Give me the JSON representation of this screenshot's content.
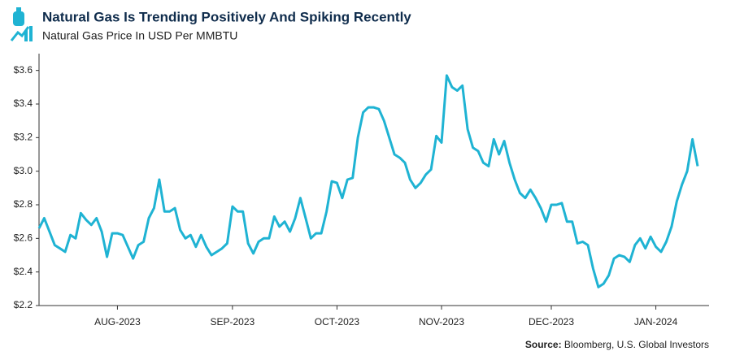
{
  "chart_data": {
    "type": "line",
    "title": "Natural Gas Is Trending Positively And Spiking Recently",
    "subtitle": "Natural Gas Price In USD Per MMBTU",
    "source_label": "Source:",
    "source": "Bloomberg, U.S. Global Investors",
    "categories": [
      null,
      null,
      null,
      null,
      null,
      null,
      null,
      null,
      null,
      null,
      null,
      null,
      null,
      null,
      null,
      "AUG-2023",
      null,
      null,
      null,
      null,
      null,
      null,
      null,
      null,
      null,
      null,
      null,
      null,
      null,
      null,
      null,
      null,
      null,
      null,
      null,
      null,
      null,
      "SEP-2023",
      null,
      null,
      null,
      null,
      null,
      null,
      null,
      null,
      null,
      null,
      null,
      null,
      null,
      null,
      null,
      null,
      null,
      null,
      null,
      "OCT-2023",
      null,
      null,
      null,
      null,
      null,
      null,
      null,
      null,
      null,
      null,
      null,
      null,
      null,
      null,
      null,
      null,
      null,
      null,
      null,
      "NOV-2023",
      null,
      null,
      null,
      null,
      null,
      null,
      null,
      null,
      null,
      null,
      null,
      null,
      null,
      null,
      null,
      null,
      null,
      null,
      null,
      null,
      "DEC-2023",
      null,
      null,
      null,
      null,
      null,
      null,
      null,
      null,
      null,
      null,
      null,
      null,
      null,
      null,
      null,
      null,
      null,
      null,
      null,
      "JAN-2024",
      null,
      null,
      null,
      null,
      null,
      null,
      null,
      null
    ],
    "series": [
      {
        "name": "Natural Gas Price",
        "color": "#1fb3d3",
        "values": [
          2.66,
          2.72,
          2.64,
          2.56,
          2.54,
          2.52,
          2.62,
          2.6,
          2.75,
          2.71,
          2.68,
          2.72,
          2.64,
          2.49,
          2.63,
          2.63,
          2.62,
          2.55,
          2.48,
          2.56,
          2.58,
          2.72,
          2.78,
          2.95,
          2.76,
          2.76,
          2.78,
          2.65,
          2.6,
          2.62,
          2.55,
          2.62,
          2.55,
          2.5,
          2.52,
          2.54,
          2.57,
          2.79,
          2.76,
          2.76,
          2.57,
          2.51,
          2.58,
          2.6,
          2.6,
          2.73,
          2.67,
          2.7,
          2.64,
          2.72,
          2.84,
          2.72,
          2.6,
          2.63,
          2.63,
          2.76,
          2.94,
          2.93,
          2.84,
          2.95,
          2.96,
          3.2,
          3.35,
          3.38,
          3.38,
          3.37,
          3.3,
          3.2,
          3.1,
          3.08,
          3.05,
          2.95,
          2.9,
          2.93,
          2.98,
          3.01,
          3.21,
          3.17,
          3.57,
          3.5,
          3.48,
          3.51,
          3.25,
          3.14,
          3.12,
          3.05,
          3.03,
          3.19,
          3.1,
          3.18,
          3.05,
          2.95,
          2.87,
          2.84,
          2.89,
          2.84,
          2.78,
          2.7,
          2.8,
          2.8,
          2.81,
          2.7,
          2.7,
          2.57,
          2.58,
          2.56,
          2.42,
          2.31,
          2.33,
          2.38,
          2.48,
          2.5,
          2.49,
          2.46,
          2.56,
          2.6,
          2.54,
          2.61,
          2.55,
          2.52,
          2.58,
          2.67,
          2.82,
          2.92,
          3.0,
          3.19,
          3.03
        ]
      }
    ],
    "ylim": [
      2.2,
      3.7
    ],
    "yticks": [
      {
        "value": 2.2,
        "label": "$2.2"
      },
      {
        "value": 2.4,
        "label": "$2.4"
      },
      {
        "value": 2.6,
        "label": "$2.6"
      },
      {
        "value": 2.8,
        "label": "$2.8"
      },
      {
        "value": 3.0,
        "label": "$3.0"
      },
      {
        "value": 3.2,
        "label": "$3.2"
      },
      {
        "value": 3.4,
        "label": "$3.4"
      },
      {
        "value": 3.6,
        "label": "$3.6"
      }
    ],
    "grid": false
  }
}
